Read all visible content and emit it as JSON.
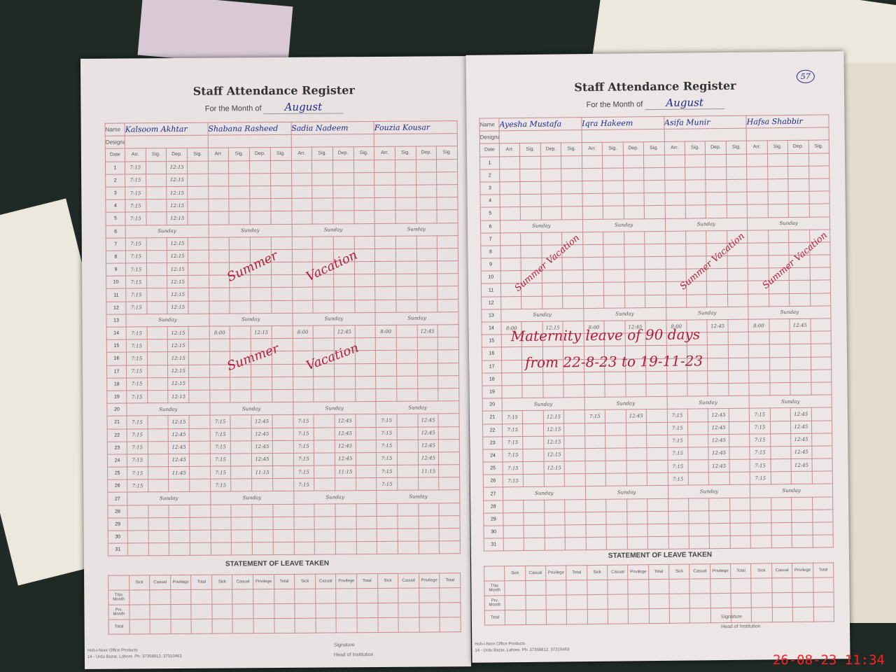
{
  "title": "Staff Attendance Register",
  "month_label": "For the Month of",
  "name_label": "Name",
  "designation_label": "Designation",
  "column_headers": [
    "Date",
    "Arr.",
    "Sig.",
    "Dep.",
    "Sig."
  ],
  "leave_title": "STATEMENT OF LEAVE TAKEN",
  "leave_columns": [
    "Sick",
    "Casual",
    "Privilege",
    "Total"
  ],
  "leave_rows": [
    "This Month",
    "Prv. Month",
    "Total"
  ],
  "publisher_line1": "Hoh-i-Noor Office Products",
  "publisher_line2": "14 - Urdu Bazar, Lahore. Ph: 37358812, 37310463",
  "signature_label": "Signature",
  "head_label": "Head of Institution",
  "sunday_label": "Sunday",
  "timestamp": "26-08-23  11:34",
  "left_page": {
    "month": "August",
    "staff": [
      {
        "name": "Kalsoom Akhtar",
        "entries": {
          "1": [
            "7:15",
            "12:15"
          ],
          "2": [
            "7:15",
            "12:15"
          ],
          "3": [
            "7:15",
            "12:15"
          ],
          "4": [
            "7:15",
            "12:15"
          ],
          "5": [
            "7:15",
            "12:15"
          ],
          "7": [
            "7:15",
            "12:15"
          ],
          "8": [
            "7:15",
            "12:15"
          ],
          "9": [
            "7:15",
            "12:15"
          ],
          "10": [
            "7:15",
            "12:15"
          ],
          "11": [
            "7:15",
            "12:15"
          ],
          "12": [
            "7:15",
            "12:15"
          ],
          "14": [
            "7:15",
            "12:15"
          ],
          "15": [
            "7:15",
            "12:15"
          ],
          "16": [
            "7:15",
            "12:15"
          ],
          "17": [
            "7:15",
            "12:15"
          ],
          "18": [
            "7:15",
            "12:15"
          ],
          "19": [
            "7:15",
            "12:15"
          ],
          "21": [
            "7:15",
            "12:15"
          ],
          "22": [
            "7:15",
            "12:45"
          ],
          "23": [
            "7:15",
            "12:45"
          ],
          "24": [
            "7:15",
            "12:45"
          ],
          "25": [
            "7:15",
            "11:45"
          ],
          "26": [
            "7:15",
            ""
          ]
        }
      },
      {
        "name": "Shabana Rasheed",
        "entries": {
          "14": [
            "8:00",
            "12:15"
          ],
          "21": [
            "7:15",
            "12:45"
          ],
          "22": [
            "7:15",
            "12:45"
          ],
          "23": [
            "7:15",
            "12:45"
          ],
          "24": [
            "7:15",
            "12:45"
          ],
          "25": [
            "7:15",
            "11:15"
          ],
          "26": [
            "7:15",
            ""
          ]
        }
      },
      {
        "name": "Sadia Nadeem",
        "entries": {
          "14": [
            "8:00",
            "12:45"
          ],
          "21": [
            "7:15",
            "12:45"
          ],
          "22": [
            "7:15",
            "12:45"
          ],
          "23": [
            "7:15",
            "12:45"
          ],
          "24": [
            "7:15",
            "12:45"
          ],
          "25": [
            "7:15",
            "11:15"
          ],
          "26": [
            "7:15",
            ""
          ]
        }
      },
      {
        "name": "Fouzia Kousar",
        "entries": {
          "14": [
            "8:00",
            "12:45"
          ],
          "21": [
            "7:15",
            "12:45"
          ],
          "22": [
            "7:15",
            "12:45"
          ],
          "23": [
            "7:15",
            "12:45"
          ],
          "24": [
            "7:15",
            "12:45"
          ],
          "25": [
            "7:15",
            "11:15"
          ],
          "26": [
            "7:15",
            ""
          ]
        }
      }
    ],
    "annotations": [
      "Summer",
      "Vacation",
      "Summer",
      "Vacation"
    ]
  },
  "right_page": {
    "month": "August",
    "page_number": "57",
    "staff": [
      {
        "name": "Ayesha Mustafa",
        "entries": {
          "14": [
            "8:00",
            "12:15"
          ],
          "21": [
            "7:15",
            "12:15"
          ],
          "22": [
            "7:15",
            "12:15"
          ],
          "23": [
            "7:15",
            "12:15"
          ],
          "24": [
            "7:15",
            "12:15"
          ],
          "25": [
            "7:15",
            "12:15"
          ],
          "26": [
            "7:15",
            ""
          ]
        }
      },
      {
        "name": "Iqra Hakeem",
        "entries": {
          "14": [
            "8:00",
            "12:45"
          ],
          "21": [
            "7:15",
            "12:45"
          ]
        }
      },
      {
        "name": "Asifa Munir",
        "entries": {
          "14": [
            "8:00",
            "12:45"
          ],
          "21": [
            "7:15",
            "12:45"
          ],
          "22": [
            "7:15",
            "12:45"
          ],
          "23": [
            "7:15",
            "12:45"
          ],
          "24": [
            "7:15",
            "12:45"
          ],
          "25": [
            "7:15",
            "12:45"
          ],
          "26": [
            "7:15",
            ""
          ]
        }
      },
      {
        "name": "Hafsa Shabbir",
        "entries": {
          "14": [
            "8:00",
            "12:45"
          ],
          "21": [
            "7:15",
            "12:45"
          ],
          "22": [
            "7:15",
            "12:45"
          ],
          "23": [
            "7:15",
            "12:45"
          ],
          "24": [
            "7:15",
            "12:45"
          ],
          "25": [
            "7:15",
            "12:45"
          ],
          "26": [
            "7:15",
            ""
          ]
        }
      }
    ],
    "annotations": [
      "Summer Vacation",
      "Summer Vacation",
      "Summer Vacation",
      "Maternity leave of 90 days",
      "from 22-8-23 to 19-11-23"
    ]
  },
  "sundays": [
    6,
    13,
    20,
    27
  ]
}
